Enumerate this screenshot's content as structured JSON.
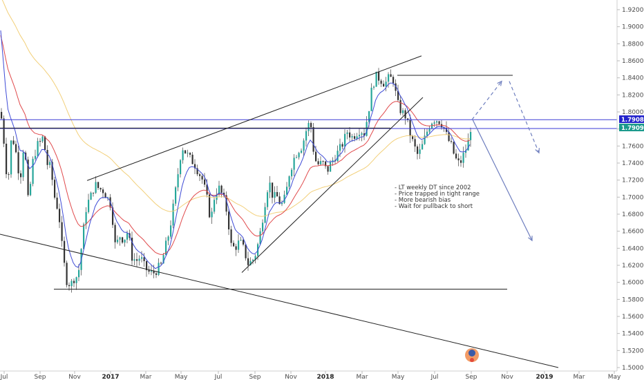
{
  "chart_data": {
    "type": "candlestick",
    "title": "",
    "xlabel": "",
    "ylabel": "",
    "ylim": [
      1.5,
      1.93
    ],
    "y_ticks": [
      "1.92000",
      "1.90000",
      "1.88000",
      "1.86000",
      "1.84000",
      "1.82000",
      "1.80000",
      "1.78000",
      "1.76000",
      "1.74000",
      "1.72000",
      "1.70000",
      "1.68000",
      "1.66000",
      "1.64000",
      "1.62000",
      "1.60000",
      "1.58000",
      "1.56000",
      "1.54000",
      "1.52000",
      "1.50000"
    ],
    "x_ticks": [
      {
        "label": "Jul",
        "bold": false
      },
      {
        "label": "Sep",
        "bold": false
      },
      {
        "label": "Nov",
        "bold": false
      },
      {
        "label": "2017",
        "bold": true
      },
      {
        "label": "Mar",
        "bold": false
      },
      {
        "label": "May",
        "bold": false
      },
      {
        "label": "Jul",
        "bold": false
      },
      {
        "label": "Sep",
        "bold": false
      },
      {
        "label": "Nov",
        "bold": false
      },
      {
        "label": "2018",
        "bold": true
      },
      {
        "label": "Mar",
        "bold": false
      },
      {
        "label": "May",
        "bold": false
      },
      {
        "label": "Jul",
        "bold": false
      },
      {
        "label": "Sep",
        "bold": false
      },
      {
        "label": "Nov",
        "bold": false
      },
      {
        "label": "2019",
        "bold": true
      },
      {
        "label": "Mar",
        "bold": false
      },
      {
        "label": "May",
        "bold": false
      }
    ],
    "price_labels": {
      "last": "1.79088",
      "close": "1.79096"
    },
    "levels": {
      "resistance": 1.843,
      "support": 1.592,
      "current": 1.7909,
      "range_low": 1.781
    },
    "colors": {
      "up": "#26a69a",
      "down": "#333333",
      "wick": "#555555",
      "ma_fast": "#3e4bd6",
      "ma_mid": "#e0494b",
      "ma_slow": "#f2cf78",
      "projection": "#6f7fbf",
      "current_line": "#3a3ad6",
      "last_tag_bg": "#2424cc",
      "close_tag_bg": "#1b9a8c"
    },
    "annotations": [
      "- LT weekly DT since 2002",
      "- Price trapped in tight range",
      "- More bearish bias",
      "- Wait for pullback to short"
    ],
    "grid": false,
    "legend": "none"
  },
  "icons": {
    "logo": "tradingview-watermark-icon"
  }
}
